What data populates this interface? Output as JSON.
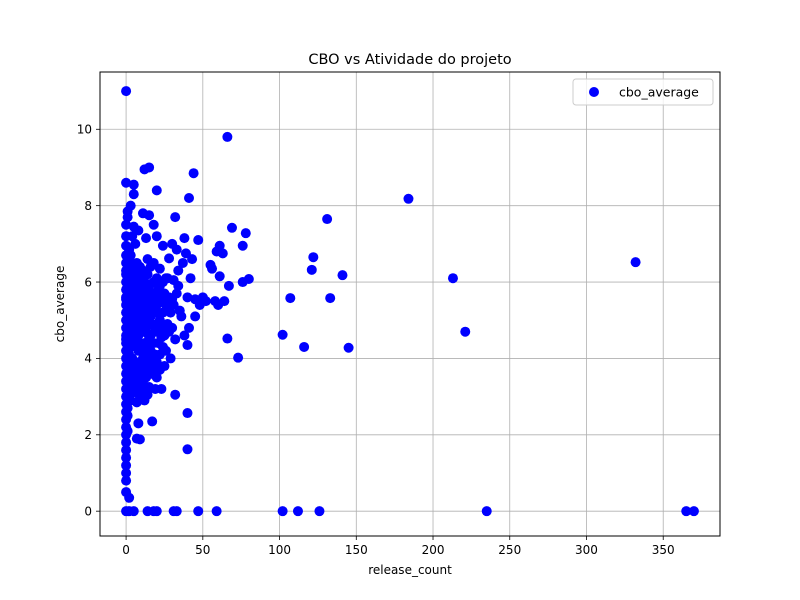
{
  "chart_data": {
    "type": "scatter",
    "title": "CBO vs Atividade do projeto",
    "xlabel": "release_count",
    "ylabel": "cbo_average",
    "xlim": [
      -17,
      387
    ],
    "ylim": [
      -0.65,
      11.5
    ],
    "xticks": [
      0,
      50,
      100,
      150,
      200,
      250,
      300,
      350
    ],
    "yticks": [
      0,
      2,
      4,
      6,
      8,
      10
    ],
    "grid": true,
    "legend": {
      "placement": "top-right",
      "entries": [
        "cbo_average"
      ]
    },
    "series": [
      {
        "name": "cbo_average",
        "color": "#0000ff",
        "points": [
          [
            0,
            11.0
          ],
          [
            66,
            9.8
          ],
          [
            15,
            9.0
          ],
          [
            12,
            8.95
          ],
          [
            44,
            8.85
          ],
          [
            0,
            8.6
          ],
          [
            5,
            8.55
          ],
          [
            20,
            8.4
          ],
          [
            5,
            8.3
          ],
          [
            41,
            8.2
          ],
          [
            184,
            8.18
          ],
          [
            3,
            8.0
          ],
          [
            1,
            7.85
          ],
          [
            11,
            7.8
          ],
          [
            15,
            7.75
          ],
          [
            32,
            7.7
          ],
          [
            1,
            7.7
          ],
          [
            131,
            7.65
          ],
          [
            18,
            7.5
          ],
          [
            8,
            7.35
          ],
          [
            5,
            7.45
          ],
          [
            69,
            7.42
          ],
          [
            78,
            7.28
          ],
          [
            4,
            7.2
          ],
          [
            13,
            7.15
          ],
          [
            20,
            7.2
          ],
          [
            38,
            7.15
          ],
          [
            47,
            7.1
          ],
          [
            6,
            7.0
          ],
          [
            24,
            6.95
          ],
          [
            30,
            7.0
          ],
          [
            61,
            6.95
          ],
          [
            76,
            6.95
          ],
          [
            0,
            6.95
          ],
          [
            2,
            6.85
          ],
          [
            33,
            6.85
          ],
          [
            39,
            6.75
          ],
          [
            59,
            6.8
          ],
          [
            63,
            6.75
          ],
          [
            122,
            6.65
          ],
          [
            28,
            6.62
          ],
          [
            14,
            6.6
          ],
          [
            18,
            6.5
          ],
          [
            332,
            6.52
          ],
          [
            55,
            6.45
          ],
          [
            56,
            6.35
          ],
          [
            7,
            6.5
          ],
          [
            4,
            6.4
          ],
          [
            11,
            6.3
          ],
          [
            22,
            6.35
          ],
          [
            34,
            6.3
          ],
          [
            121,
            6.32
          ],
          [
            0,
            6.3
          ],
          [
            141,
            6.18
          ],
          [
            61,
            6.15
          ],
          [
            80,
            6.08
          ],
          [
            76,
            6.0
          ],
          [
            213,
            6.1
          ],
          [
            31,
            6.05
          ],
          [
            42,
            6.1
          ],
          [
            26,
            6.1
          ],
          [
            67,
            5.9
          ],
          [
            3,
            6.2
          ],
          [
            9,
            6.0
          ],
          [
            16,
            5.95
          ],
          [
            21,
            5.8
          ],
          [
            1,
            5.8
          ],
          [
            5,
            5.7
          ],
          [
            12,
            5.6
          ],
          [
            18,
            5.5
          ],
          [
            24,
            5.6
          ],
          [
            30,
            5.55
          ],
          [
            33,
            5.7
          ],
          [
            40,
            5.6
          ],
          [
            45,
            5.55
          ],
          [
            50,
            5.6
          ],
          [
            58,
            5.5
          ],
          [
            60,
            5.4
          ],
          [
            64,
            5.5
          ],
          [
            107,
            5.58
          ],
          [
            133,
            5.58
          ],
          [
            0,
            5.55
          ],
          [
            2,
            5.3
          ],
          [
            7,
            5.2
          ],
          [
            11,
            5.1
          ],
          [
            15,
            5.0
          ],
          [
            19,
            5.2
          ],
          [
            27,
            5.3
          ],
          [
            35,
            5.25
          ],
          [
            45,
            5.1
          ],
          [
            28,
            4.7
          ],
          [
            41,
            4.8
          ],
          [
            38,
            4.6
          ],
          [
            221,
            4.7
          ],
          [
            102,
            4.62
          ],
          [
            66,
            4.52
          ],
          [
            4,
            4.9
          ],
          [
            9,
            4.8
          ],
          [
            14,
            4.65
          ],
          [
            23,
            4.55
          ],
          [
            32,
            4.5
          ],
          [
            40,
            4.35
          ],
          [
            116,
            4.3
          ],
          [
            145,
            4.28
          ],
          [
            73,
            4.02
          ],
          [
            0,
            4.5
          ],
          [
            3,
            4.3
          ],
          [
            8,
            4.2
          ],
          [
            12,
            4.1
          ],
          [
            17,
            4.0
          ],
          [
            20,
            3.9
          ],
          [
            29,
            4.0
          ],
          [
            1,
            3.85
          ],
          [
            5,
            3.7
          ],
          [
            10,
            3.65
          ],
          [
            16,
            3.6
          ],
          [
            22,
            3.7
          ],
          [
            25,
            3.8
          ],
          [
            2,
            3.5
          ],
          [
            6,
            3.4
          ],
          [
            11,
            3.3
          ],
          [
            15,
            3.25
          ],
          [
            19,
            3.2
          ],
          [
            23,
            3.2
          ],
          [
            0,
            3.2
          ],
          [
            4,
            3.1
          ],
          [
            9,
            3.0
          ],
          [
            14,
            3.05
          ],
          [
            32,
            3.05
          ],
          [
            0,
            3.0
          ],
          [
            3,
            2.9
          ],
          [
            7,
            2.85
          ],
          [
            12,
            2.9
          ],
          [
            40,
            2.57
          ],
          [
            1,
            2.5
          ],
          [
            8,
            2.3
          ],
          [
            17,
            2.35
          ],
          [
            1,
            2.1
          ],
          [
            7,
            1.9
          ],
          [
            9,
            1.88
          ],
          [
            40,
            1.62
          ],
          [
            0,
            1.8
          ],
          [
            0,
            1.6
          ],
          [
            0,
            1.4
          ],
          [
            0,
            1.2
          ],
          [
            0,
            1.0
          ],
          [
            0,
            0.8
          ],
          [
            0,
            0.5
          ],
          [
            2,
            0.35
          ],
          [
            0,
            0.0
          ],
          [
            2,
            0.0
          ],
          [
            5,
            0.0
          ],
          [
            14,
            0.0
          ],
          [
            18,
            0.0
          ],
          [
            20,
            0.0
          ],
          [
            31,
            0.0
          ],
          [
            33,
            0.0
          ],
          [
            47,
            0.0
          ],
          [
            59,
            0.0
          ],
          [
            102,
            0.0
          ],
          [
            112,
            0.0
          ],
          [
            126,
            0.0
          ],
          [
            235,
            0.0
          ],
          [
            365,
            0.0
          ],
          [
            370,
            0.0
          ],
          [
            0,
            2.0
          ],
          [
            0,
            2.2
          ],
          [
            0,
            2.4
          ],
          [
            0,
            2.6
          ],
          [
            0,
            2.8
          ],
          [
            0,
            3.4
          ],
          [
            0,
            3.6
          ],
          [
            0,
            3.8
          ],
          [
            0,
            4.0
          ],
          [
            0,
            4.2
          ],
          [
            0,
            4.4
          ],
          [
            0,
            4.6
          ],
          [
            0,
            4.8
          ],
          [
            0,
            5.0
          ],
          [
            0,
            5.2
          ],
          [
            0,
            5.4
          ],
          [
            0,
            5.6
          ],
          [
            0,
            5.8
          ],
          [
            0,
            6.0
          ],
          [
            0,
            6.2
          ],
          [
            0,
            6.5
          ],
          [
            0,
            6.7
          ],
          [
            0,
            7.2
          ],
          [
            0,
            7.5
          ],
          [
            1,
            6.1
          ],
          [
            1,
            5.2
          ],
          [
            1,
            4.7
          ],
          [
            1,
            4.2
          ],
          [
            1,
            3.6
          ],
          [
            1,
            3.0
          ],
          [
            1,
            2.7
          ],
          [
            2,
            6.6
          ],
          [
            2,
            5.9
          ],
          [
            2,
            5.1
          ],
          [
            2,
            4.6
          ],
          [
            2,
            4.1
          ],
          [
            2,
            3.3
          ],
          [
            3,
            6.7
          ],
          [
            3,
            5.6
          ],
          [
            3,
            4.8
          ],
          [
            3,
            4.5
          ],
          [
            3,
            3.8
          ],
          [
            4,
            6.0
          ],
          [
            4,
            5.4
          ],
          [
            4,
            4.0
          ],
          [
            4,
            3.5
          ],
          [
            5,
            6.2
          ],
          [
            5,
            5.0
          ],
          [
            5,
            4.4
          ],
          [
            5,
            3.9
          ],
          [
            6,
            6.3
          ],
          [
            6,
            5.8
          ],
          [
            6,
            4.7
          ],
          [
            6,
            3.2
          ],
          [
            7,
            6.4
          ],
          [
            7,
            5.5
          ],
          [
            7,
            4.9
          ],
          [
            7,
            4.3
          ],
          [
            7,
            3.6
          ],
          [
            8,
            6.1
          ],
          [
            8,
            5.6
          ],
          [
            8,
            5.0
          ],
          [
            8,
            4.6
          ],
          [
            8,
            3.9
          ],
          [
            8,
            3.3
          ],
          [
            9,
            6.4
          ],
          [
            9,
            5.4
          ],
          [
            9,
            4.4
          ],
          [
            9,
            3.5
          ],
          [
            10,
            6.2
          ],
          [
            10,
            5.8
          ],
          [
            10,
            5.3
          ],
          [
            10,
            4.9
          ],
          [
            10,
            4.3
          ],
          [
            10,
            3.8
          ],
          [
            10,
            3.2
          ],
          [
            11,
            5.7
          ],
          [
            11,
            4.7
          ],
          [
            11,
            4.0
          ],
          [
            11,
            3.4
          ],
          [
            12,
            6.0
          ],
          [
            12,
            5.4
          ],
          [
            12,
            4.4
          ],
          [
            12,
            3.7
          ],
          [
            13,
            5.9
          ],
          [
            13,
            5.2
          ],
          [
            13,
            4.8
          ],
          [
            13,
            4.2
          ],
          [
            13,
            3.5
          ],
          [
            14,
            6.2
          ],
          [
            14,
            5.5
          ],
          [
            14,
            4.9
          ],
          [
            14,
            4.3
          ],
          [
            14,
            3.9
          ],
          [
            15,
            5.8
          ],
          [
            15,
            5.3
          ],
          [
            15,
            4.5
          ],
          [
            15,
            3.8
          ],
          [
            16,
            6.4
          ],
          [
            16,
            5.1
          ],
          [
            16,
            4.6
          ],
          [
            16,
            4.2
          ],
          [
            17,
            5.7
          ],
          [
            17,
            5.3
          ],
          [
            17,
            4.9
          ],
          [
            17,
            3.6
          ],
          [
            18,
            6.0
          ],
          [
            18,
            4.4
          ],
          [
            18,
            3.8
          ],
          [
            19,
            5.6
          ],
          [
            19,
            4.8
          ],
          [
            19,
            4.1
          ],
          [
            20,
            6.1
          ],
          [
            20,
            5.4
          ],
          [
            20,
            4.7
          ],
          [
            20,
            3.5
          ],
          [
            21,
            5.2
          ],
          [
            21,
            4.4
          ],
          [
            22,
            5.9
          ],
          [
            22,
            5.0
          ],
          [
            22,
            4.1
          ],
          [
            23,
            5.5
          ],
          [
            23,
            4.8
          ],
          [
            24,
            6.0
          ],
          [
            24,
            5.2
          ],
          [
            24,
            4.3
          ],
          [
            25,
            5.7
          ],
          [
            25,
            4.6
          ],
          [
            26,
            5.4
          ],
          [
            26,
            4.2
          ],
          [
            27,
            6.1
          ],
          [
            27,
            4.9
          ],
          [
            28,
            5.6
          ],
          [
            29,
            5.2
          ],
          [
            30,
            4.8
          ],
          [
            31,
            5.4
          ],
          [
            34,
            5.9
          ],
          [
            36,
            5.1
          ],
          [
            37,
            6.5
          ],
          [
            43,
            6.6
          ],
          [
            48,
            5.4
          ],
          [
            52,
            5.5
          ]
        ]
      }
    ]
  }
}
